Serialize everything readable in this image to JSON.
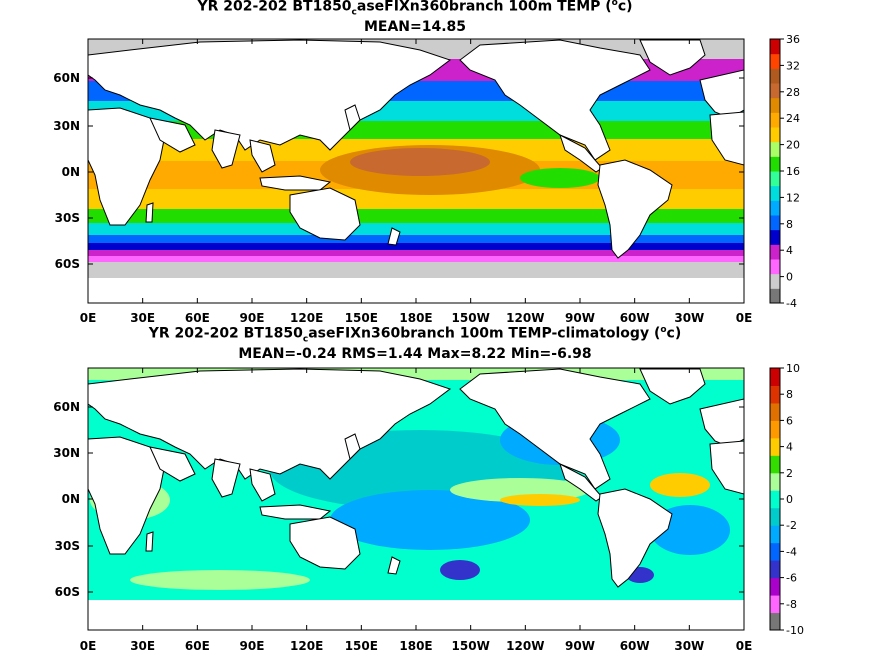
{
  "panels": [
    {
      "title_pre": "YR 202-202 BT1850",
      "title_sub": "c",
      "title_post_a": "aseFIXn360branch 100m TEMP (",
      "title_sup": "o",
      "title_post_b": "c)",
      "stats": "MEAN=14.85",
      "colorbar_labels": [
        "36",
        "32",
        "28",
        "24",
        "20",
        "16",
        "12",
        "8",
        "4",
        "0",
        "-4"
      ]
    },
    {
      "title_pre": "YR 202-202 BT1850",
      "title_sub": "c",
      "title_post_a": "aseFIXn360branch 100m TEMP-climatology (",
      "title_sup": "o",
      "title_post_b": "c)",
      "stats": "MEAN=-0.24   RMS=1.44   Max=8.22   Min=-6.98",
      "colorbar_labels": [
        "10",
        "8",
        "6",
        "4",
        "2",
        "0",
        "-2",
        "-4",
        "-6",
        "-8",
        "-10"
      ]
    }
  ],
  "x_ticks": [
    "0E",
    "30E",
    "60E",
    "90E",
    "120E",
    "150E",
    "180E",
    "150W",
    "120W",
    "90W",
    "60W",
    "30W",
    "0E"
  ],
  "y_ticks": [
    "60N",
    "30N",
    "0N",
    "30S",
    "60S"
  ],
  "colors": {
    "temp_scale": [
      "#777777",
      "#cccccc",
      "#ff66ff",
      "#cc22cc",
      "#0000cc",
      "#0066ff",
      "#00aaff",
      "#00dddd",
      "#33ff99",
      "#22dd00",
      "#aaff66",
      "#ffcc00",
      "#ffaa00",
      "#e08a00",
      "#c86a30",
      "#b05a20",
      "#ff4400",
      "#cc0000"
    ],
    "anom_scale": [
      "#777777",
      "#ff66ff",
      "#aa00cc",
      "#3333cc",
      "#0066ff",
      "#00aaff",
      "#00cccc",
      "#00ffcc",
      "#aaff99",
      "#33dd00",
      "#ffcc00",
      "#ff9900",
      "#e07000",
      "#dd3300",
      "#cc0000"
    ],
    "land": "#ffffff",
    "ice": "#cccccc"
  }
}
